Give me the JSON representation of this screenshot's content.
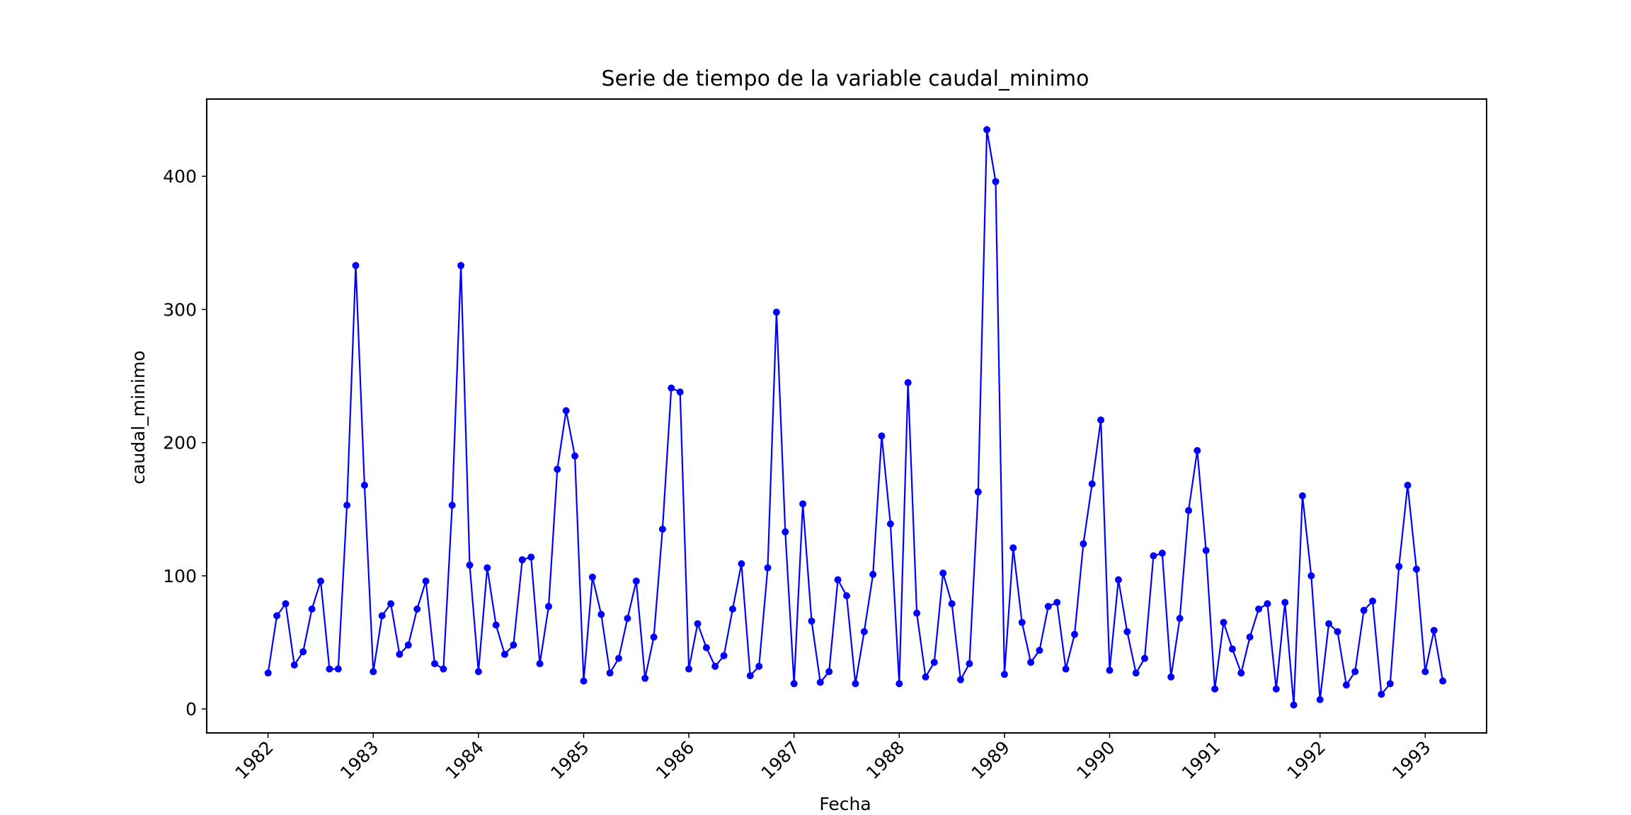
{
  "chart_data": {
    "type": "line",
    "title": "Serie de tiempo de la variable caudal_minimo",
    "xlabel": "Fecha",
    "ylabel": "caudal_minimo",
    "x_tick_labels": [
      "1982",
      "1983",
      "1984",
      "1985",
      "1986",
      "1987",
      "1988",
      "1989",
      "1990",
      "1991",
      "1992",
      "1993"
    ],
    "y_tick_labels": [
      "0",
      "100",
      "200",
      "300",
      "400"
    ],
    "y_ticks": [
      0,
      100,
      200,
      300,
      400
    ],
    "xlim": [
      "1981-06",
      "1993-08"
    ],
    "ylim": [
      -18,
      458
    ],
    "grid": false,
    "series": [
      {
        "color": "#0000ff",
        "marker": "circle",
        "x": [
          "1982-01",
          "1982-02",
          "1982-03",
          "1982-04",
          "1982-05",
          "1982-06",
          "1982-07",
          "1982-08",
          "1982-09",
          "1982-10",
          "1982-11",
          "1982-12",
          "1983-01",
          "1983-02",
          "1983-03",
          "1983-04",
          "1983-05",
          "1983-06",
          "1983-07",
          "1983-08",
          "1983-09",
          "1983-10",
          "1983-11",
          "1983-12",
          "1984-01",
          "1984-02",
          "1984-03",
          "1984-04",
          "1984-05",
          "1984-06",
          "1984-07",
          "1984-08",
          "1984-09",
          "1984-10",
          "1984-11",
          "1984-12",
          "1985-01",
          "1985-02",
          "1985-03",
          "1985-04",
          "1985-05",
          "1985-06",
          "1985-07",
          "1985-08",
          "1985-09",
          "1985-10",
          "1985-11",
          "1985-12",
          "1986-01",
          "1986-02",
          "1986-03",
          "1986-04",
          "1986-05",
          "1986-06",
          "1986-07",
          "1986-08",
          "1986-09",
          "1986-10",
          "1986-11",
          "1986-12",
          "1987-01",
          "1987-02",
          "1987-03",
          "1987-04",
          "1987-05",
          "1987-06",
          "1987-07",
          "1987-08",
          "1987-09",
          "1987-10",
          "1987-11",
          "1987-12",
          "1988-01",
          "1988-02",
          "1988-03",
          "1988-04",
          "1988-05",
          "1988-06",
          "1988-07",
          "1988-08",
          "1988-09",
          "1988-10",
          "1988-11",
          "1988-12",
          "1989-01",
          "1989-02",
          "1989-03",
          "1989-04",
          "1989-05",
          "1989-06",
          "1989-07",
          "1989-08",
          "1989-09",
          "1989-10",
          "1989-11",
          "1989-12",
          "1990-01",
          "1990-02",
          "1990-03",
          "1990-04",
          "1990-05",
          "1990-06",
          "1990-07",
          "1990-08",
          "1990-09",
          "1990-10",
          "1990-11",
          "1990-12",
          "1991-01",
          "1991-02",
          "1991-03",
          "1991-04",
          "1991-05",
          "1991-06",
          "1991-07",
          "1991-08",
          "1991-09",
          "1991-10",
          "1991-11",
          "1991-12",
          "1992-01",
          "1992-02",
          "1992-03",
          "1992-04",
          "1992-05",
          "1992-06",
          "1992-07",
          "1992-08",
          "1992-09",
          "1992-10",
          "1992-11",
          "1992-12",
          "1993-01",
          "1993-02",
          "1993-03"
        ],
        "y": [
          27,
          70,
          79,
          33,
          43,
          75,
          96,
          30,
          30,
          153,
          333,
          168,
          28,
          70,
          79,
          41,
          48,
          75,
          96,
          34,
          30,
          153,
          333,
          108,
          28,
          106,
          63,
          41,
          48,
          112,
          114,
          34,
          77,
          180,
          224,
          190,
          21,
          99,
          71,
          27,
          38,
          68,
          96,
          23,
          54,
          135,
          241,
          238,
          30,
          64,
          46,
          32,
          40,
          75,
          109,
          25,
          32,
          106,
          298,
          133,
          19,
          154,
          66,
          20,
          28,
          97,
          85,
          19,
          58,
          101,
          205,
          139,
          19,
          245,
          72,
          24,
          35,
          102,
          79,
          22,
          34,
          163,
          435,
          396,
          26,
          121,
          65,
          35,
          44,
          77,
          80,
          30,
          56,
          124,
          169,
          217,
          29,
          97,
          58,
          27,
          38,
          115,
          117,
          24,
          68,
          149,
          194,
          119,
          15,
          65,
          45,
          27,
          54,
          75,
          79,
          15,
          80,
          3,
          160,
          100,
          7,
          64,
          58,
          18,
          28,
          74,
          81,
          11,
          19,
          107,
          168,
          105,
          28,
          59,
          21
        ]
      }
    ]
  }
}
